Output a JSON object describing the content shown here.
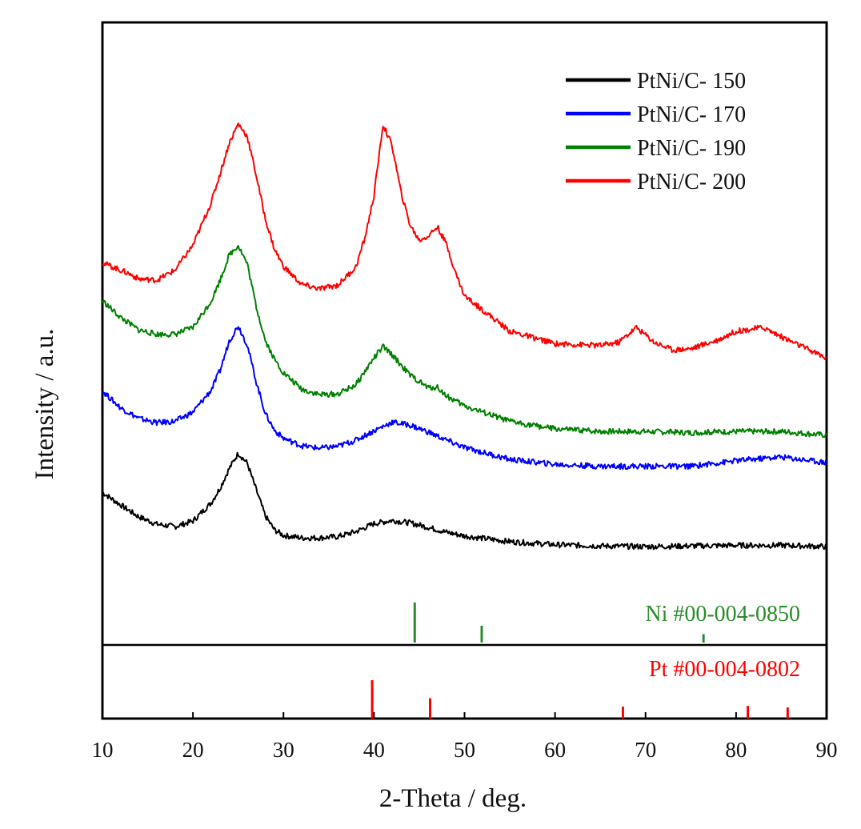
{
  "chart_data": {
    "type": "line",
    "title": "",
    "xlabel": "2-Theta / deg.",
    "ylabel": "Intensity / a.u.",
    "xlim": [
      10,
      90
    ],
    "ylim": [
      0,
      100
    ],
    "xticks": [
      10,
      20,
      30,
      40,
      50,
      60,
      70,
      80,
      90
    ],
    "xtick_labels": [
      "10",
      "20",
      "30",
      "40",
      "50",
      "60",
      "70",
      "80",
      "90"
    ],
    "grid": false,
    "legend_position": "top-right",
    "series": [
      {
        "name": "PtNi/C- 150",
        "color": "#000000",
        "x": [
          10,
          12,
          14,
          16,
          18,
          20,
          22,
          23,
          24,
          25,
          26,
          27,
          28,
          29,
          30,
          32,
          34,
          36,
          38,
          40,
          42,
          44,
          46,
          48,
          50,
          55,
          60,
          65,
          70,
          75,
          80,
          85,
          90
        ],
        "y": [
          24.5,
          22.5,
          20.6,
          19.4,
          19.0,
          19.9,
          22.8,
          25.2,
          28.3,
          30.8,
          29.2,
          24.9,
          20.7,
          18.5,
          17.6,
          17.2,
          17.2,
          17.4,
          18.2,
          19.5,
          20.0,
          19.6,
          18.9,
          18.1,
          17.5,
          16.6,
          16.1,
          15.9,
          15.8,
          15.9,
          16.0,
          16.0,
          15.8
        ]
      },
      {
        "name": "PtNi/C- 170",
        "color": "#0000ff",
        "x": [
          10,
          12,
          14,
          16,
          18,
          20,
          22,
          23,
          24,
          25,
          26,
          27,
          28,
          29,
          30,
          32,
          34,
          36,
          38,
          40,
          42,
          44,
          46,
          48,
          50,
          55,
          60,
          65,
          70,
          75,
          80,
          85,
          90
        ],
        "y": [
          40.8,
          38.1,
          36.4,
          35.7,
          35.9,
          37.4,
          40.9,
          44.1,
          48.8,
          51.3,
          48.2,
          42.2,
          37.2,
          34.5,
          33.2,
          32.0,
          31.6,
          31.9,
          32.9,
          34.4,
          35.8,
          35.3,
          34.2,
          32.9,
          31.7,
          29.8,
          29.0,
          28.7,
          28.7,
          28.7,
          29.6,
          30.2,
          29.3
        ]
      },
      {
        "name": "PtNi/C- 190",
        "color": "#008000",
        "x": [
          10,
          12,
          14,
          16,
          18,
          20,
          22,
          23,
          24,
          25,
          26,
          27,
          28,
          29,
          30,
          32,
          34,
          36,
          38,
          40,
          41,
          42,
          44,
          46,
          47,
          48,
          50,
          55,
          60,
          65,
          70,
          75,
          80,
          85,
          90
        ],
        "y": [
          55.3,
          52.6,
          50.6,
          49.9,
          49.9,
          51.0,
          55.2,
          58.6,
          62.6,
          64.2,
          61.2,
          54.3,
          48.9,
          45.9,
          43.7,
          41.1,
          40.2,
          40.3,
          41.8,
          46.1,
          47.9,
          46.6,
          43.3,
          41.3,
          41.4,
          40.0,
          38.4,
          35.9,
          34.7,
          34.3,
          34.3,
          34.1,
          34.3,
          34.3,
          33.7
        ]
      },
      {
        "name": "PtNi/C- 200",
        "color": "#ff0000",
        "x": [
          10,
          12,
          13,
          14,
          16,
          18,
          20,
          22,
          23,
          24,
          25,
          26,
          27,
          28,
          29,
          30,
          32,
          34,
          36,
          38,
          39,
          40,
          41,
          42,
          43,
          44,
          45,
          46,
          47,
          48,
          49,
          50,
          55,
          60,
          65,
          67,
          69,
          71,
          73,
          75,
          78,
          80,
          83,
          86,
          90
        ],
        "y": [
          61.4,
          60.2,
          59.6,
          58.8,
          58.6,
          60.2,
          64.2,
          71.0,
          75.7,
          80.6,
          83.7,
          81.7,
          75.4,
          68.4,
          63.6,
          60.8,
          57.9,
          57.2,
          57.8,
          60.7,
          65.4,
          72.2,
          83.6,
          80.2,
          72.6,
          67.4,
          65.0,
          65.7,
          67.2,
          64.4,
          59.8,
          56.1,
          50.4,
          48.4,
          48.1,
          48.6,
          51.0,
          48.6,
          47.4,
          47.6,
          49.0,
          50.4,
          51.0,
          48.8,
          46.1
        ]
      }
    ],
    "reference_patterns": [
      {
        "name": "Ni #00-004-0850",
        "color": "#2a8c2a",
        "peaks": [
          {
            "two_theta": 44.5,
            "rel_intensity": 100
          },
          {
            "two_theta": 51.9,
            "rel_intensity": 42
          },
          {
            "two_theta": 76.4,
            "rel_intensity": 21
          }
        ]
      },
      {
        "name": "Pt #00-004-0802",
        "color": "#ff0000",
        "peaks": [
          {
            "two_theta": 39.8,
            "rel_intensity": 100
          },
          {
            "two_theta": 46.2,
            "rel_intensity": 53
          },
          {
            "two_theta": 67.5,
            "rel_intensity": 31
          },
          {
            "two_theta": 81.3,
            "rel_intensity": 33
          },
          {
            "two_theta": 85.7,
            "rel_intensity": 29
          }
        ]
      }
    ]
  }
}
